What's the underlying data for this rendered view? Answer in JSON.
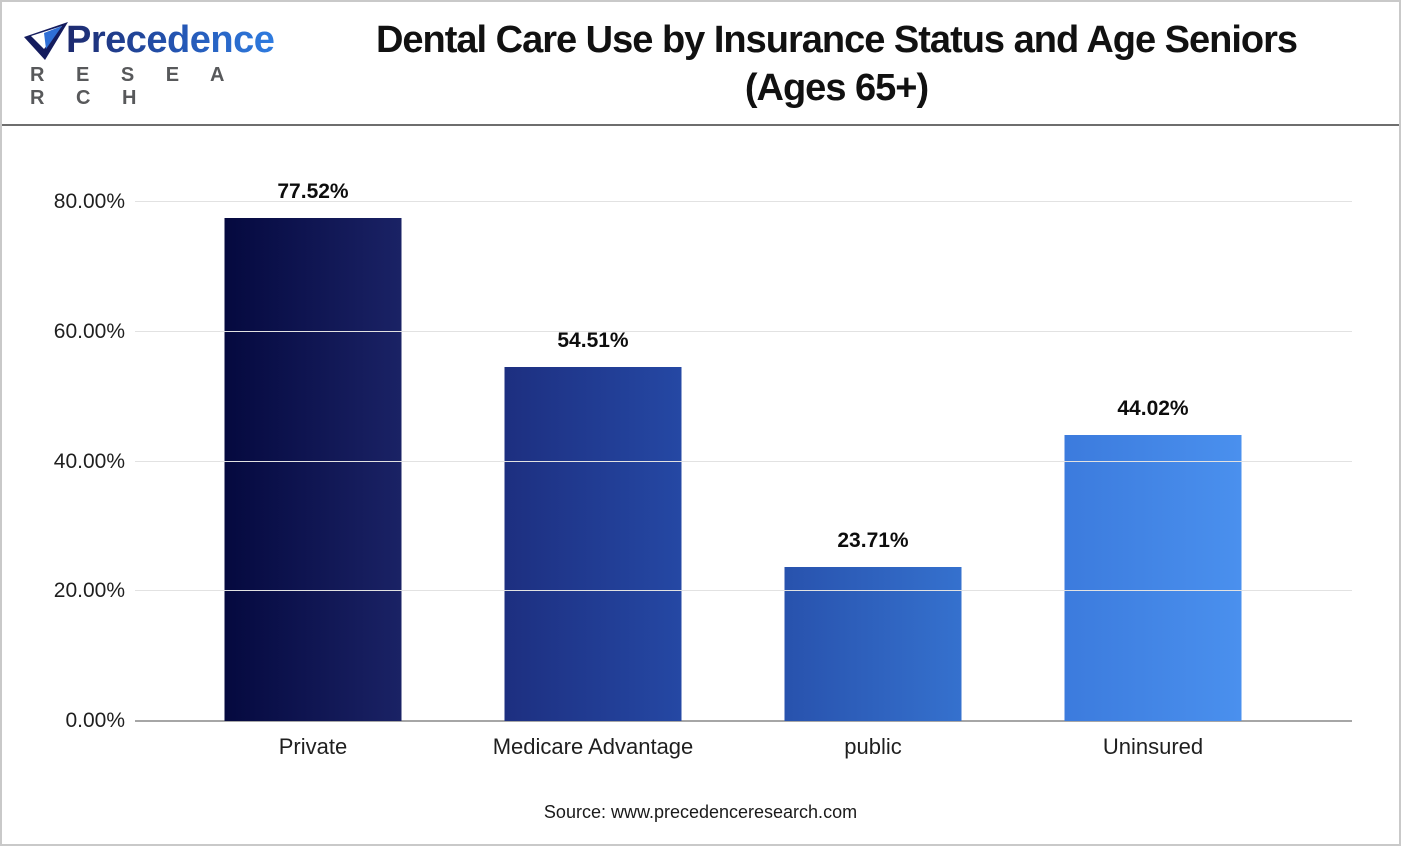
{
  "logo": {
    "brand": "Precedence",
    "sub": "R E S E A R C H"
  },
  "header": {
    "title_line1": "Dental Care Use by Insurance Status and Age Seniors",
    "title_line2": "(Ages 65+)"
  },
  "chart_data": {
    "type": "bar",
    "title": "Dental Care Use by Insurance Status and Age Seniors (Ages 65+)",
    "categories": [
      "Private",
      "Medicare Advantage",
      "public",
      "Uninsured"
    ],
    "values": [
      77.52,
      54.51,
      23.71,
      44.02
    ],
    "value_labels": [
      "77.52%",
      "54.51%",
      "23.71%",
      "44.02%"
    ],
    "xlabel": "",
    "ylabel": "",
    "ylim": [
      0,
      80
    ],
    "yticks": [
      {
        "value": 80,
        "label": "80.00%"
      },
      {
        "value": 60,
        "label": "60.00%"
      },
      {
        "value": 40,
        "label": "40.00%"
      },
      {
        "value": 20,
        "label": "20.00%"
      },
      {
        "value": 0,
        "label": "0.00%"
      }
    ],
    "grid": "horizontal",
    "legend": "none",
    "bar_colors": [
      {
        "from": "#05093f",
        "to": "#1a2265"
      },
      {
        "from": "#1d2f80",
        "to": "#2548a4"
      },
      {
        "from": "#2852ad",
        "to": "#3571ce"
      },
      {
        "from": "#3c7bdd",
        "to": "#4a90ee"
      }
    ]
  },
  "footer": {
    "source": "Source: www.precedenceresearch.com"
  },
  "colors": {
    "gridline": "#e2e2e2",
    "axisline": "#a6a6a6",
    "logo_gray": "#58595b",
    "logo_navy": "#1d2a6e",
    "logo_blue": "#2f7ce0"
  }
}
